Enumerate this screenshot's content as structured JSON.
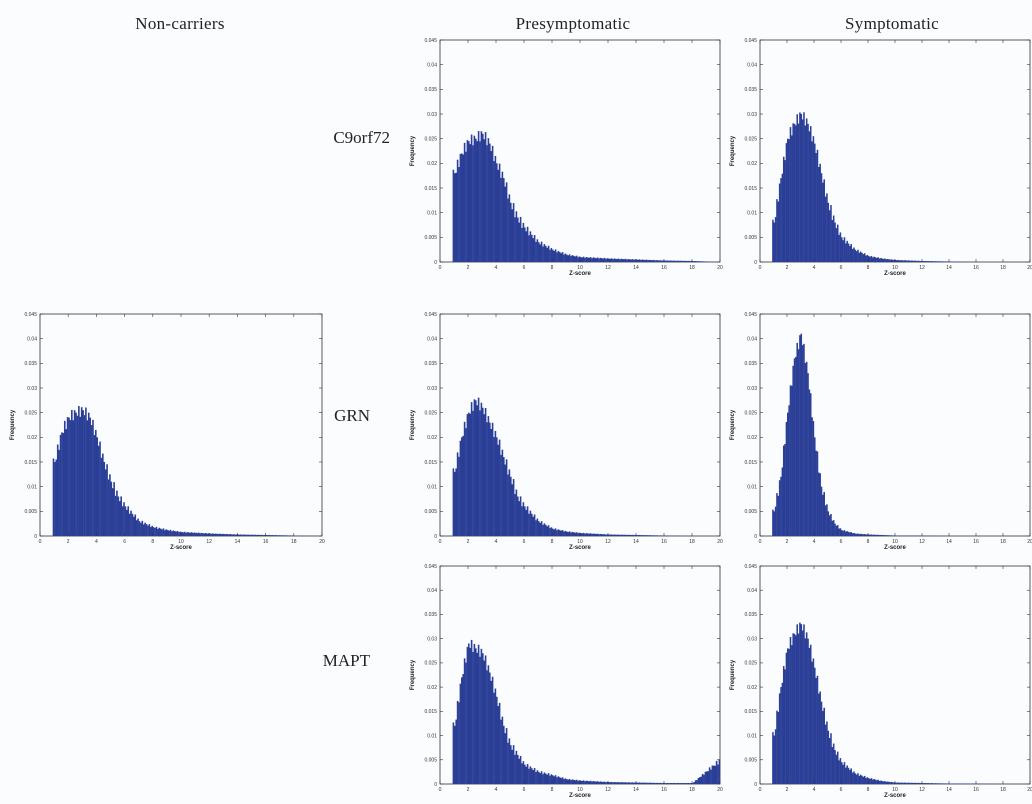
{
  "column_titles": {
    "noncarriers": "Non-carriers",
    "presymptomatic": "Presymptomatic",
    "symptomatic": "Symptomatic"
  },
  "row_labels": {
    "c9orf72": "C9orf72",
    "grn": "GRN",
    "mapt": "MAPT"
  },
  "colors": {
    "bar": "#2b3f97",
    "axis": "#333333",
    "background": "#fbfcfe"
  },
  "chart_data": [
    {
      "id": "noncarriers",
      "type": "bar",
      "title": "",
      "xlabel": "Z-score",
      "ylabel": "Frequency",
      "xlim": [
        0,
        20
      ],
      "ylim": [
        0,
        0.045
      ],
      "x_ticks": [
        "0",
        "2",
        "4",
        "6",
        "8",
        "10",
        "12",
        "14",
        "16",
        "18",
        "20"
      ],
      "y_ticks": [
        "0",
        "0.005",
        "0.01",
        "0.015",
        "0.02",
        "0.025",
        "0.03",
        "0.035",
        "0.04",
        "0.045"
      ],
      "bin_centers": [
        1,
        1.5,
        2,
        2.5,
        3,
        3.5,
        4,
        4.5,
        5,
        5.5,
        6,
        7,
        8,
        9,
        10,
        12,
        14,
        16,
        18,
        20
      ],
      "values": [
        0.015,
        0.021,
        0.024,
        0.025,
        0.0255,
        0.024,
        0.02,
        0.015,
        0.011,
        0.008,
        0.006,
        0.003,
        0.0018,
        0.0012,
        0.0008,
        0.0005,
        0.0003,
        0.0002,
        0.0001,
        0
      ]
    },
    {
      "id": "c9_pre",
      "type": "bar",
      "title": "",
      "xlabel": "Z-score",
      "ylabel": "Frequency",
      "xlim": [
        0,
        20
      ],
      "ylim": [
        0,
        0.045
      ],
      "x_ticks": [
        "0",
        "2",
        "4",
        "6",
        "8",
        "10",
        "12",
        "14",
        "16",
        "18",
        "20"
      ],
      "y_ticks": [
        "0",
        "0.005",
        "0.01",
        "0.015",
        "0.02",
        "0.025",
        "0.03",
        "0.035",
        "0.04",
        "0.045"
      ],
      "bin_centers": [
        1,
        1.5,
        2,
        2.5,
        3,
        3.5,
        4,
        4.5,
        5,
        5.5,
        6,
        7,
        8,
        9,
        10,
        12,
        14,
        16,
        18,
        20
      ],
      "values": [
        0.018,
        0.022,
        0.0245,
        0.025,
        0.026,
        0.024,
        0.02,
        0.017,
        0.012,
        0.009,
        0.007,
        0.004,
        0.0025,
        0.0015,
        0.001,
        0.0007,
        0.0005,
        0.0003,
        0.0002,
        0
      ]
    },
    {
      "id": "c9_sym",
      "type": "bar",
      "title": "",
      "xlabel": "Z-score",
      "ylabel": "Frequency",
      "xlim": [
        0,
        20
      ],
      "ylim": [
        0,
        0.045
      ],
      "x_ticks": [
        "0",
        "2",
        "4",
        "6",
        "8",
        "10",
        "12",
        "14",
        "16",
        "18",
        "20"
      ],
      "y_ticks": [
        "0",
        "0.005",
        "0.01",
        "0.015",
        "0.02",
        "0.025",
        "0.03",
        "0.035",
        "0.04",
        "0.045"
      ],
      "bin_centers": [
        1,
        1.5,
        2,
        2.5,
        3,
        3.5,
        4,
        4.5,
        5,
        5.5,
        6,
        7,
        8,
        9,
        10,
        12,
        14,
        16,
        18,
        20
      ],
      "values": [
        0.008,
        0.017,
        0.025,
        0.028,
        0.03,
        0.028,
        0.024,
        0.018,
        0.012,
        0.008,
        0.005,
        0.0025,
        0.0012,
        0.0007,
        0.0004,
        0.0002,
        0.0001,
        0,
        0,
        0
      ]
    },
    {
      "id": "grn_pre",
      "type": "bar",
      "title": "",
      "xlabel": "Z-score",
      "ylabel": "Frequency",
      "xlim": [
        0,
        20
      ],
      "ylim": [
        0,
        0.045
      ],
      "x_ticks": [
        "0",
        "2",
        "4",
        "6",
        "8",
        "10",
        "12",
        "14",
        "16",
        "18",
        "20"
      ],
      "y_ticks": [
        "0",
        "0.005",
        "0.01",
        "0.015",
        "0.02",
        "0.025",
        "0.03",
        "0.035",
        "0.04",
        "0.045"
      ],
      "bin_centers": [
        1,
        1.5,
        2,
        2.5,
        3,
        3.5,
        4,
        4.5,
        5,
        5.5,
        6,
        7,
        8,
        9,
        10,
        12,
        14,
        16,
        18,
        20
      ],
      "values": [
        0.013,
        0.02,
        0.025,
        0.0275,
        0.026,
        0.023,
        0.02,
        0.016,
        0.012,
        0.008,
        0.006,
        0.003,
        0.0015,
        0.0009,
        0.0006,
        0.0003,
        0.0002,
        0.0001,
        0,
        0
      ]
    },
    {
      "id": "grn_sym",
      "type": "bar",
      "title": "",
      "xlabel": "Z-score",
      "ylabel": "Frequency",
      "xlim": [
        0,
        20
      ],
      "ylim": [
        0,
        0.045
      ],
      "x_ticks": [
        "0",
        "2",
        "4",
        "6",
        "8",
        "10",
        "12",
        "14",
        "16",
        "18",
        "20"
      ],
      "y_ticks": [
        "0",
        "0.005",
        "0.01",
        "0.015",
        "0.02",
        "0.025",
        "0.03",
        "0.035",
        "0.04",
        "0.045"
      ],
      "bin_centers": [
        1,
        1.5,
        2,
        2.5,
        3,
        3.5,
        4,
        4.5,
        5,
        5.5,
        6,
        7,
        8,
        9,
        10,
        12,
        14,
        16,
        18,
        20
      ],
      "values": [
        0.005,
        0.012,
        0.025,
        0.036,
        0.041,
        0.033,
        0.02,
        0.01,
        0.005,
        0.0025,
        0.0012,
        0.0005,
        0.0003,
        0.0002,
        0.0001,
        0.0001,
        0,
        0,
        0,
        0
      ]
    },
    {
      "id": "mapt_pre",
      "type": "bar",
      "title": "",
      "xlabel": "Z-score",
      "ylabel": "Frequency",
      "xlim": [
        0,
        20
      ],
      "ylim": [
        0,
        0.045
      ],
      "x_ticks": [
        "0",
        "2",
        "4",
        "6",
        "8",
        "10",
        "12",
        "14",
        "16",
        "18",
        "20"
      ],
      "y_ticks": [
        "0",
        "0.005",
        "0.01",
        "0.015",
        "0.02",
        "0.025",
        "0.03",
        "0.035",
        "0.04",
        "0.045"
      ],
      "bin_centers": [
        1,
        1.5,
        2,
        2.5,
        3,
        3.5,
        4,
        4.5,
        5,
        5.5,
        6,
        7,
        8,
        9,
        10,
        12,
        14,
        16,
        18,
        20
      ],
      "values": [
        0.012,
        0.022,
        0.029,
        0.028,
        0.027,
        0.023,
        0.018,
        0.012,
        0.008,
        0.006,
        0.004,
        0.0025,
        0.0018,
        0.001,
        0.0007,
        0.0004,
        0.0003,
        0.0002,
        0.0002,
        0.005
      ]
    },
    {
      "id": "mapt_sym",
      "type": "bar",
      "title": "",
      "xlabel": "Z-score",
      "ylabel": "Frequency",
      "xlim": [
        0,
        20
      ],
      "ylim": [
        0,
        0.045
      ],
      "x_ticks": [
        "0",
        "2",
        "4",
        "6",
        "8",
        "10",
        "12",
        "14",
        "16",
        "18",
        "20"
      ],
      "y_ticks": [
        "0",
        "0.005",
        "0.01",
        "0.015",
        "0.02",
        "0.025",
        "0.03",
        "0.035",
        "0.04",
        "0.045"
      ],
      "bin_centers": [
        1,
        1.5,
        2,
        2.5,
        3,
        3.5,
        4,
        4.5,
        5,
        5.5,
        6,
        7,
        8,
        9,
        10,
        12,
        14,
        16,
        18,
        20
      ],
      "values": [
        0.01,
        0.02,
        0.028,
        0.031,
        0.033,
        0.03,
        0.024,
        0.017,
        0.011,
        0.007,
        0.0045,
        0.0022,
        0.0012,
        0.0006,
        0.0003,
        0.0002,
        0.0001,
        0.0001,
        0,
        0
      ]
    }
  ]
}
